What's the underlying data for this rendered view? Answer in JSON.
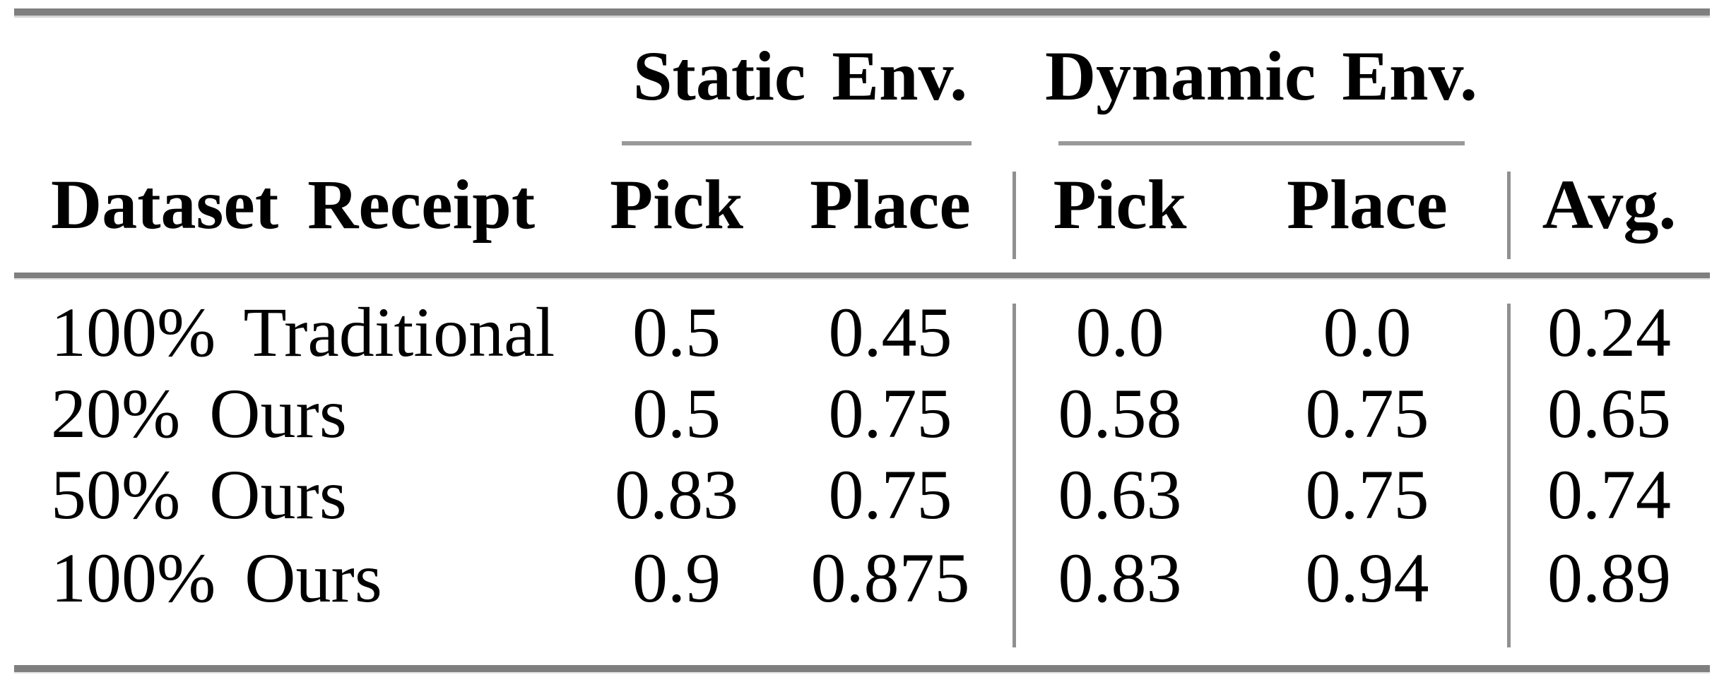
{
  "table": {
    "groups": [
      {
        "label": "Static Env."
      },
      {
        "label": "Dynamic Env."
      }
    ],
    "headers": [
      "Dataset Receipt",
      "Pick",
      "Place",
      "Pick",
      "Place",
      "Avg."
    ],
    "rows": [
      {
        "cells": [
          "100% Traditional",
          "0.5",
          "0.45",
          "0.0",
          "0.0",
          "0.24"
        ]
      },
      {
        "cells": [
          "20% Ours",
          "0.5",
          "0.75",
          "0.58",
          "0.75",
          "0.65"
        ]
      },
      {
        "cells": [
          "50% Ours",
          "0.83",
          "0.75",
          "0.63",
          "0.75",
          "0.74"
        ]
      },
      {
        "cells": [
          "100% Ours",
          "0.9",
          "0.875",
          "0.83",
          "0.94",
          "0.89"
        ]
      }
    ],
    "colors": {
      "thick_rule": "#7f7f7f",
      "thin_rule": "#999999",
      "vertical_line": "#909090",
      "text": "#000000",
      "background": "#ffffff"
    }
  },
  "chart_data": {
    "type": "table",
    "title": "",
    "column_groups": [
      {
        "label": "Static Env.",
        "columns": [
          "Pick",
          "Place"
        ]
      },
      {
        "label": "Dynamic Env.",
        "columns": [
          "Pick",
          "Place"
        ]
      }
    ],
    "columns": [
      "Dataset Receipt",
      "Static Env. Pick",
      "Static Env. Place",
      "Dynamic Env. Pick",
      "Dynamic Env. Place",
      "Avg."
    ],
    "rows": [
      [
        "100% Traditional",
        0.5,
        0.45,
        0.0,
        0.0,
        0.24
      ],
      [
        "20% Ours",
        0.5,
        0.75,
        0.58,
        0.75,
        0.65
      ],
      [
        "50% Ours",
        0.83,
        0.75,
        0.63,
        0.75,
        0.74
      ],
      [
        "100% Ours",
        0.9,
        0.875,
        0.83,
        0.94,
        0.89
      ]
    ]
  }
}
